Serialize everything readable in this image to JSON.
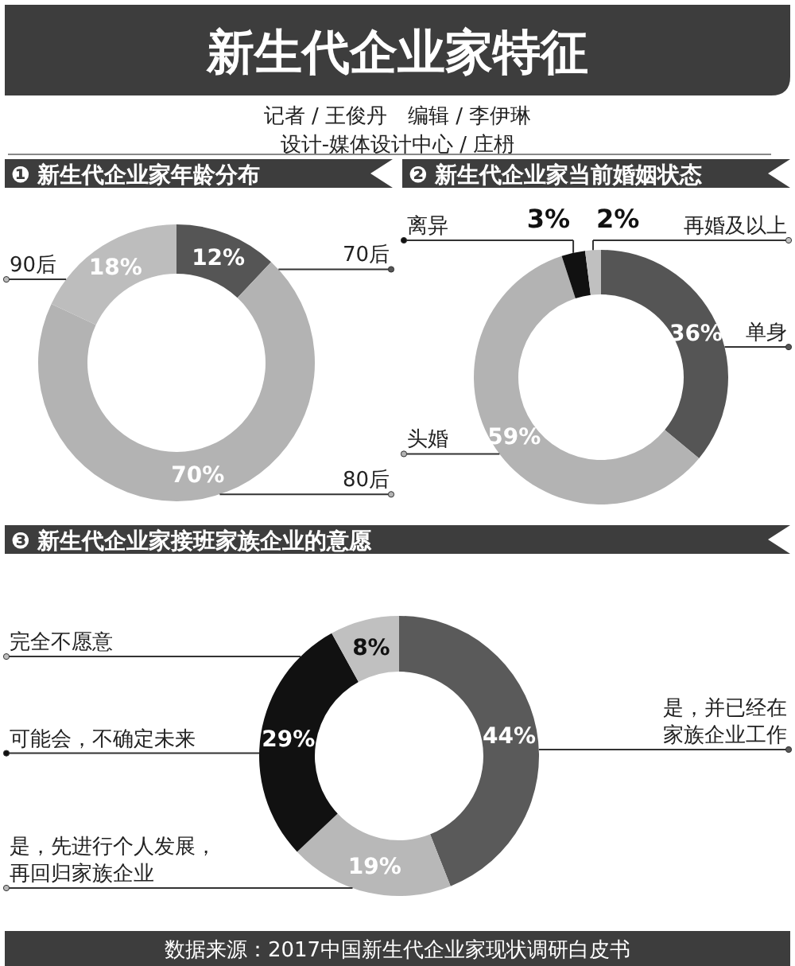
{
  "chart_data": [
    {
      "type": "other",
      "title": "新生代企业家特征",
      "annotations": [
        "记者 / 王俊丹　编辑 / 李伊琳",
        "设计-媒体设计中心 / 庄枬"
      ]
    },
    {
      "type": "donut",
      "title": "❶ 新生代企业家年龄分布",
      "categories": [
        "70后",
        "80后",
        "90后"
      ],
      "values": [
        12,
        70,
        18
      ],
      "colors": [
        "#555555",
        "#b3b3b3",
        "#bdbdbd"
      ],
      "value_labels": [
        "12%",
        "70%",
        "18%"
      ],
      "legend": "right"
    },
    {
      "type": "donut",
      "title": "❷ 新生代企业家当前婚姻状态",
      "categories": [
        "单身",
        "头婚",
        "离异",
        "再婚及以上"
      ],
      "values": [
        36,
        59,
        3,
        2
      ],
      "colors": [
        "#555555",
        "#b3b3b3",
        "#111111",
        "#c0c0c0"
      ],
      "value_labels": [
        "36%",
        "59%",
        "3%",
        "2%"
      ],
      "legend": "left"
    },
    {
      "type": "donut",
      "title": "❸ 新生代企业家接班家族企业的意愿",
      "categories": [
        "是，并已经在家族企业工作",
        "是，先进行个人发展，再回归家族企业",
        "可能会，不确定未来",
        "完全不愿意"
      ],
      "values": [
        44,
        19,
        29,
        8
      ],
      "colors": [
        "#5a5a5a",
        "#b8b8b8",
        "#111111",
        "#c0c0c0"
      ],
      "value_labels": [
        "44%",
        "19%",
        "29%",
        "8%"
      ],
      "legend": "left",
      "annotations": [
        "数据来源：2017中国新生代企业家现状调研白皮书"
      ]
    }
  ]
}
